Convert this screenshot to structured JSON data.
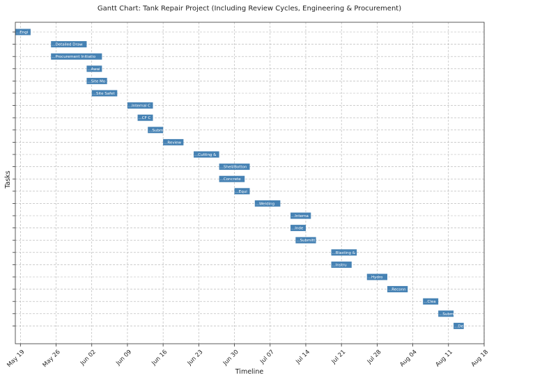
{
  "chart_data": {
    "type": "gantt",
    "title": "Gantt Chart: Tank Repair Project (Including Review Cycles, Engineering & Procurement)",
    "xlabel": "Timeline",
    "ylabel": "Tasks",
    "x_ticks": [
      "May 19",
      "May 26",
      "Jun 02",
      "Jun 09",
      "Jun 16",
      "Jun 23",
      "Jun 30",
      "Jul 07",
      "Jul 14",
      "Jul 21",
      "Jul 28",
      "Aug 04",
      "Aug 11",
      "Aug 18"
    ],
    "xlim": [
      "2024-05-18",
      "2024-08-18"
    ],
    "grid": true,
    "bar_color": "#4682b4",
    "tasks": [
      {
        "label": "...Engi",
        "start": "2024-05-18",
        "end": "2024-05-21"
      },
      {
        "label": "...Detailed Draw",
        "start": "2024-05-25",
        "end": "2024-06-01"
      },
      {
        "label": "...Procurement Initiatio",
        "start": "2024-05-25",
        "end": "2024-06-04"
      },
      {
        "label": "...Awai",
        "start": "2024-06-01",
        "end": "2024-06-04"
      },
      {
        "label": "...Site Mo",
        "start": "2024-06-01",
        "end": "2024-06-05"
      },
      {
        "label": "...Site Safet",
        "start": "2024-06-02",
        "end": "2024-06-07"
      },
      {
        "label": "...Internal C",
        "start": "2024-06-09",
        "end": "2024-06-14"
      },
      {
        "label": "...CF C",
        "start": "2024-06-11",
        "end": "2024-06-14"
      },
      {
        "label": "...Subm",
        "start": "2024-06-13",
        "end": "2024-06-16"
      },
      {
        "label": "...Review",
        "start": "2024-06-16",
        "end": "2024-06-20"
      },
      {
        "label": "...Cutting &",
        "start": "2024-06-22",
        "end": "2024-06-27"
      },
      {
        "label": "...Shell/Botton",
        "start": "2024-06-27",
        "end": "2024-07-03"
      },
      {
        "label": "...Concrete",
        "start": "2024-06-27",
        "end": "2024-07-02"
      },
      {
        "label": "...Equi",
        "start": "2024-06-30",
        "end": "2024-07-03"
      },
      {
        "label": "...Welding",
        "start": "2024-07-04",
        "end": "2024-07-09"
      },
      {
        "label": "...Interna",
        "start": "2024-07-11",
        "end": "2024-07-15"
      },
      {
        "label": "...Inde",
        "start": "2024-07-11",
        "end": "2024-07-14"
      },
      {
        "label": "...Submitt",
        "start": "2024-07-12",
        "end": "2024-07-16"
      },
      {
        "label": "...Blasting &",
        "start": "2024-07-19",
        "end": "2024-07-24"
      },
      {
        "label": "...Instru",
        "start": "2024-07-19",
        "end": "2024-07-23"
      },
      {
        "label": "...Hydro",
        "start": "2024-07-26",
        "end": "2024-07-30"
      },
      {
        "label": "...Reconn",
        "start": "2024-07-30",
        "end": "2024-08-03"
      },
      {
        "label": "...Clea",
        "start": "2024-08-06",
        "end": "2024-08-09"
      },
      {
        "label": "...Subm",
        "start": "2024-08-09",
        "end": "2024-08-12"
      },
      {
        "label": "...De",
        "start": "2024-08-12",
        "end": "2024-08-14"
      }
    ]
  }
}
